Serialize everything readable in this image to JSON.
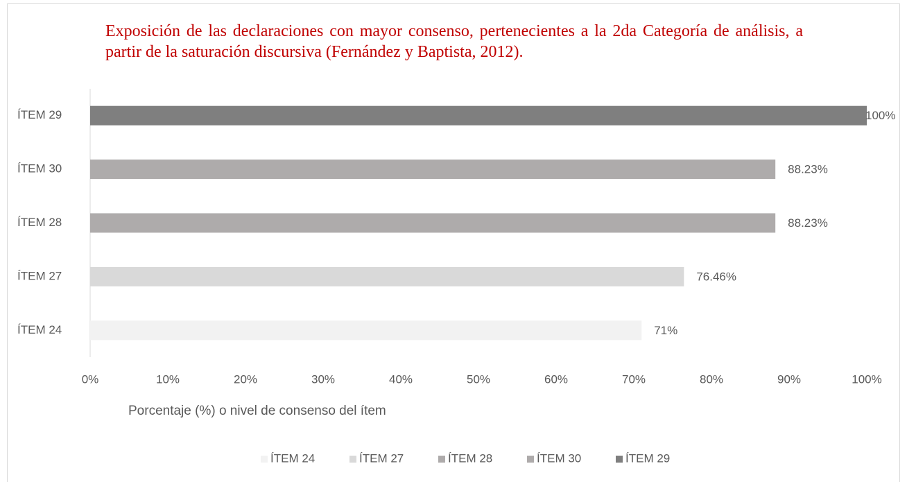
{
  "chart_data": {
    "type": "bar",
    "orientation": "horizontal",
    "title": "Exposición de las declaraciones con mayor consenso, pertenecientes a la 2da Categoría de análisis, a partir de la saturación discursiva (Fernández y Baptista, 2012).",
    "x_label": "Porcentaje (%) o nivel de consenso del ítem",
    "categories": [
      "ÍTEM 24",
      "ÍTEM 27",
      "ÍTEM 28",
      "ÍTEM 30",
      "ÍTEM 29"
    ],
    "values": [
      71,
      76.46,
      88.23,
      88.23,
      100
    ],
    "value_labels": [
      "71%",
      "76.46%",
      "88.23%",
      "88.23%",
      "100%"
    ],
    "colors": [
      "#f2f2f2",
      "#d9d9d9",
      "#aeabab",
      "#aeabab",
      "#7f7f7f"
    ],
    "xlim": [
      0,
      100
    ],
    "xticks": [
      {
        "value": 0,
        "label": "0%"
      },
      {
        "value": 10,
        "label": "10%"
      },
      {
        "value": 20,
        "label": "20%"
      },
      {
        "value": 30,
        "label": "30%"
      },
      {
        "value": 40,
        "label": "40%"
      },
      {
        "value": 50,
        "label": "50%"
      },
      {
        "value": 60,
        "label": "60%"
      },
      {
        "value": 70,
        "label": "70%"
      },
      {
        "value": 80,
        "label": "80%"
      },
      {
        "value": 90,
        "label": "90%"
      },
      {
        "value": 100,
        "label": "100%"
      }
    ],
    "grid": false,
    "legend": "bottom"
  }
}
